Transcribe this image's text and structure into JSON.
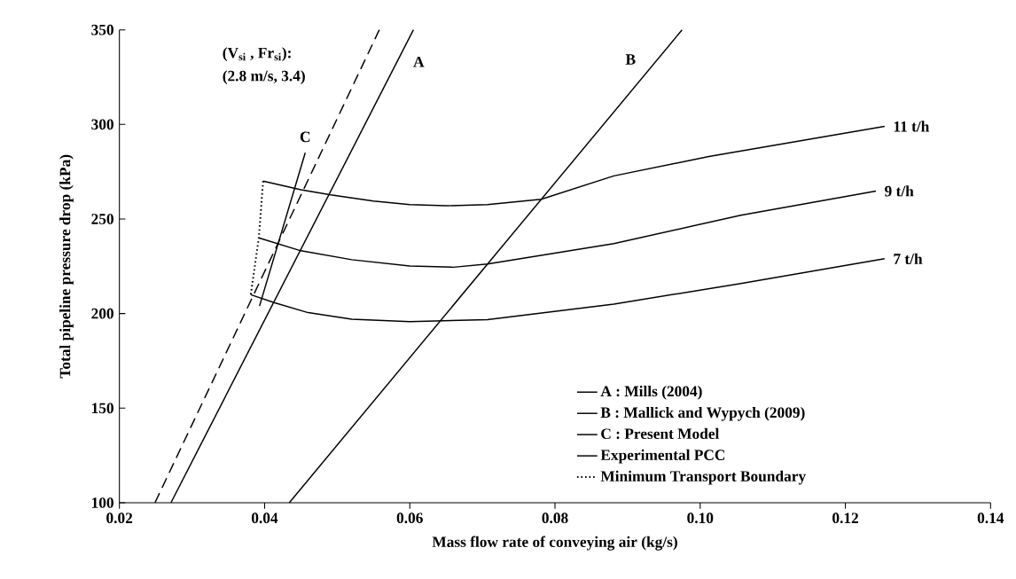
{
  "chart_data": {
    "type": "line",
    "xlabel": "Mass flow rate of conveying air (kg/s)",
    "ylabel": "Total pipeline pressure drop (kPa)",
    "xlim": [
      0.02,
      0.14
    ],
    "ylim": [
      100,
      350
    ],
    "xticks": [
      0.02,
      0.04,
      0.06,
      0.08,
      {
        "value": 0.1,
        "label": "0.10"
      },
      0.12,
      0.14
    ],
    "yticks": [
      100,
      150,
      200,
      250,
      300,
      350
    ],
    "grid": false,
    "legend": "bottom right",
    "marker": "none",
    "series": [
      {
        "name": "A : Mills (2004)",
        "color": "#000000",
        "line_style": "solid",
        "x": [
          0.0271,
          0.0605
        ],
        "values": [
          100,
          350
        ]
      },
      {
        "name": "B : Mallick and Wypych (2009)",
        "color": "#000000",
        "line_style": "solid",
        "x": [
          0.0434,
          0.0975
        ],
        "values": [
          100,
          350
        ]
      },
      {
        "name": "C : Present Model",
        "color": "#000000",
        "line_style": "solid",
        "x": [
          0.0393,
          0.0456
        ],
        "values": [
          204,
          285
        ]
      },
      {
        "name": "Experimental PCC",
        "color": "#000000",
        "line_style": "solid",
        "x": [
          0.0398,
          0.045,
          0.0491,
          0.055,
          0.06,
          0.065,
          0.0707,
          0.0781,
          0.0881,
          0.1012,
          0.1254
        ],
        "values": [
          270,
          265.5,
          262.8,
          259.5,
          257.6,
          257,
          257.6,
          260.4,
          272.8,
          283,
          299
        ]
      },
      {
        "color": "#000000",
        "line_style": "solid",
        "x": [
          0.0392,
          0.045,
          0.052,
          0.06,
          0.066,
          0.0707,
          0.0881,
          0.1056,
          0.1242
        ],
        "values": [
          240,
          233.2,
          228.5,
          225.2,
          224.5,
          226.2,
          237,
          252,
          264.8
        ]
      },
      {
        "color": "#000000",
        "line_style": "solid",
        "x": [
          0.0381,
          0.0414,
          0.046,
          0.052,
          0.06,
          0.0707,
          0.0881,
          0.1056,
          0.1254
        ],
        "values": [
          210,
          205.7,
          200.5,
          197,
          195.7,
          196.8,
          205,
          215.9,
          229
        ]
      },
      {
        "name": "Minimum Transport Boundary",
        "color": "#000000",
        "line_style": "dotted",
        "x": [
          0.0398,
          0.0392,
          0.0381
        ],
        "values": [
          270,
          240,
          210
        ]
      },
      {
        "color": "#000000",
        "line_style": "dashed",
        "x": [
          0.0249,
          0.0558
        ],
        "values": [
          100,
          350
        ]
      }
    ],
    "annotations": [
      "A",
      "B",
      "C",
      "11 t/h",
      "9 t/h",
      "7 t/h",
      "(V$_{si}$ , Fr$_{si}$):",
      "(2.8 m/s, 3.4)"
    ]
  }
}
